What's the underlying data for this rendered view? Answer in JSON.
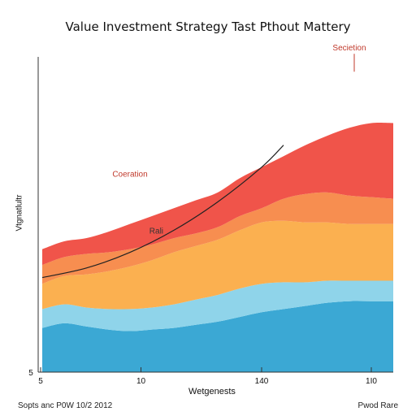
{
  "chart_data": {
    "type": "area",
    "title": "Value Investment Strategy Tast Pthout Mattery",
    "xlabel": "Wetgenests",
    "ylabel": "Vtgnatlultr",
    "xlim": [
      0,
      160
    ],
    "ylim": [
      0,
      100
    ],
    "x_ticks": [
      {
        "value": 0,
        "label": "5"
      },
      {
        "value": 45,
        "label": "10"
      },
      {
        "value": 100,
        "label": "140"
      },
      {
        "value": 150,
        "label": "1I0"
      }
    ],
    "y_ticks": [
      {
        "value": 0,
        "label": "5"
      }
    ],
    "x": [
      0,
      10,
      20,
      30,
      40,
      50,
      60,
      70,
      80,
      90,
      100,
      110,
      120,
      130,
      140,
      150,
      160
    ],
    "series": [
      {
        "color": "#3ba8d4",
        "values": [
          14.0,
          15.5,
          14.5,
          13.5,
          13.0,
          13.5,
          14.0,
          15.0,
          16.0,
          17.5,
          19.0,
          20.0,
          21.0,
          22.0,
          22.5,
          22.5,
          22.5
        ]
      },
      {
        "color": "#8fd4ea",
        "values": [
          6.0,
          6.0,
          6.0,
          6.5,
          7.0,
          7.0,
          7.5,
          8.0,
          8.5,
          9.0,
          9.0,
          8.5,
          7.5,
          7.0,
          6.5,
          6.5,
          6.5
        ]
      },
      {
        "color": "#fbb050",
        "values": [
          8.0,
          9.0,
          10.5,
          12.0,
          13.5,
          15.0,
          16.5,
          17.0,
          17.5,
          18.5,
          19.5,
          19.5,
          19.0,
          18.5,
          18.0,
          18.0,
          18.0
        ]
      },
      {
        "color": "#f78e50",
        "values": [
          6.0,
          6.0,
          6.5,
          6.0,
          5.5,
          5.0,
          4.5,
          4.0,
          4.0,
          4.5,
          4.5,
          7.0,
          9.0,
          9.5,
          9.0,
          8.5,
          8.0
        ]
      },
      {
        "color": "#f0544a",
        "values": [
          5.0,
          5.0,
          5.0,
          6.5,
          8.0,
          9.0,
          9.5,
          10.5,
          11.0,
          12.0,
          13.0,
          13.5,
          15.5,
          18.0,
          21.5,
          23.5,
          24.0
        ]
      }
    ],
    "trend_line": {
      "x": [
        0,
        20,
        40,
        60,
        80,
        100,
        110
      ],
      "y": [
        30,
        33,
        38,
        45,
        54,
        65,
        72
      ],
      "color": "#222222"
    },
    "annotations": [
      {
        "text": "Secietion",
        "x": 140,
        "y": 102,
        "color": "#c0392b"
      },
      {
        "text": "Coeration",
        "x": 40,
        "y": 62,
        "color": "#c0392b"
      },
      {
        "text": "Rali",
        "x": 52,
        "y": 44,
        "color": "#333333"
      }
    ],
    "grid": false
  },
  "footer": {
    "left": "Sopts anc P0W 10/2 2012",
    "right": "Pwod Rare"
  }
}
